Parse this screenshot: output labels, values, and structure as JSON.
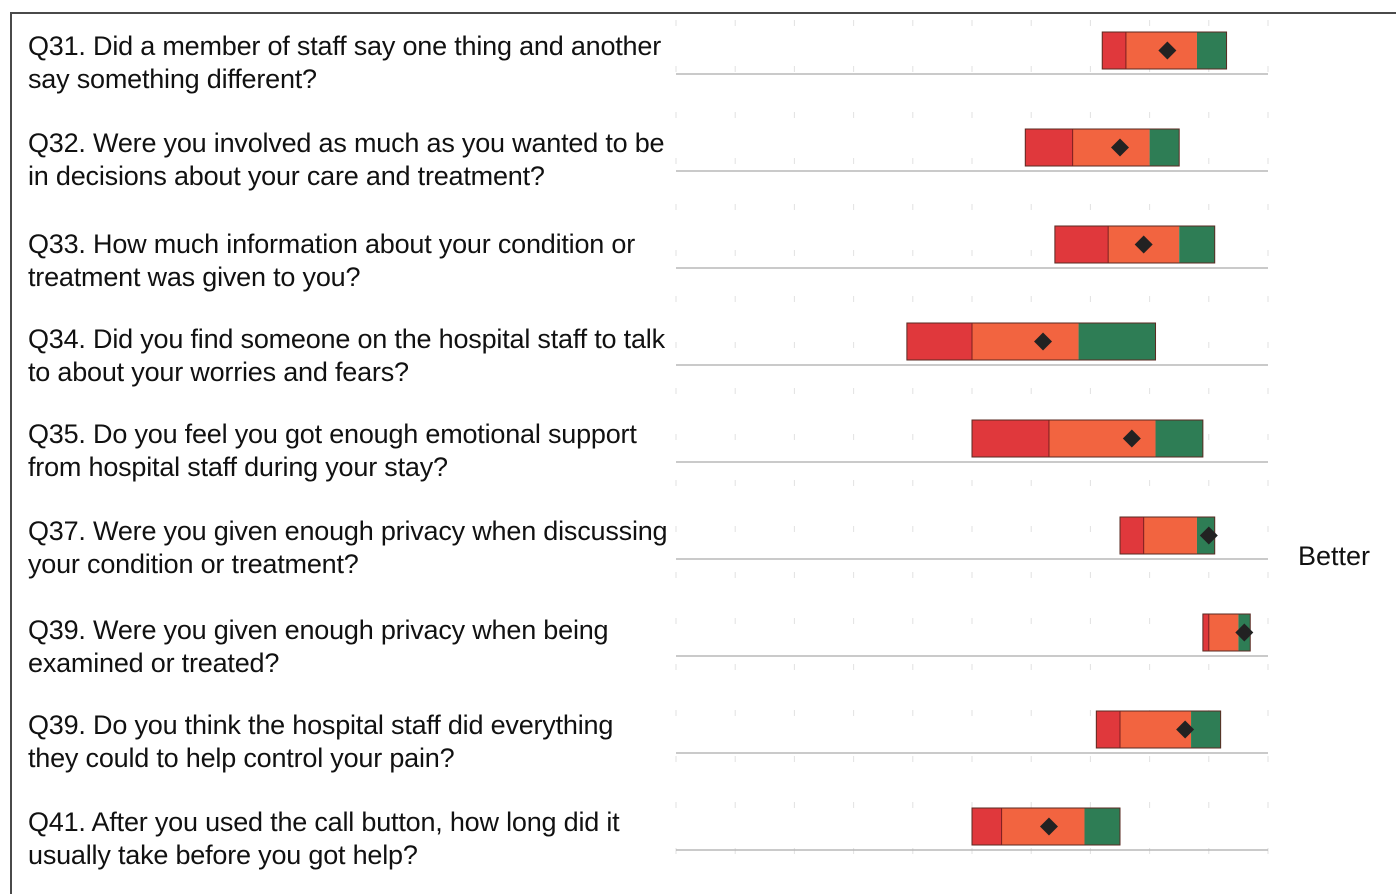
{
  "chart_data": {
    "type": "range-bar",
    "annotation": "Better",
    "colors": {
      "worse": "#e0383c",
      "middle": "#f26440",
      "better": "#2e7d55",
      "marker": "#222222",
      "grid": "#d6d6d6",
      "baseline": "#b8b8b8"
    },
    "xlim": [
      0,
      10
    ],
    "questions": [
      {
        "label": "Q31. Did a member of staff say one thing and another say something different?",
        "low": 7.2,
        "lower_mid": 7.6,
        "upper_mid": 8.8,
        "high": 9.3,
        "score": 8.3
      },
      {
        "label": "Q32. Were you involved as much as you wanted to be in decisions about your care and treatment?",
        "low": 5.9,
        "lower_mid": 6.7,
        "upper_mid": 8.0,
        "high": 8.5,
        "score": 7.5
      },
      {
        "label": "Q33. How much information about your condition or treatment was given to you?",
        "low": 6.4,
        "lower_mid": 7.3,
        "upper_mid": 8.5,
        "high": 9.1,
        "score": 7.9
      },
      {
        "label": "Q34. Did you find someone on the hospital staff to talk to about your worries and fears?",
        "low": 3.9,
        "lower_mid": 5.0,
        "upper_mid": 6.8,
        "high": 8.1,
        "score": 6.2
      },
      {
        "label": "Q35. Do you feel you got enough emotional support from hospital staff during your stay?",
        "low": 5.0,
        "lower_mid": 6.3,
        "upper_mid": 8.1,
        "high": 8.9,
        "score": 7.7
      },
      {
        "label": "Q37. Were you given enough privacy when discussing your condition or treatment?",
        "low": 7.5,
        "lower_mid": 7.9,
        "upper_mid": 8.8,
        "high": 9.1,
        "score": 9.0
      },
      {
        "label": "Q39. Were you given enough privacy when being examined or treated?",
        "low": 8.9,
        "lower_mid": 9.0,
        "upper_mid": 9.5,
        "high": 9.7,
        "score": 9.6
      },
      {
        "label": "Q39. Do you think the hospital staff did everything they could to help control your pain?",
        "low": 7.1,
        "lower_mid": 7.5,
        "upper_mid": 8.7,
        "high": 9.2,
        "score": 8.6
      },
      {
        "label": "Q41. After you used the call button, how long did it usually take before you got help?",
        "low": 5.0,
        "lower_mid": 5.5,
        "upper_mid": 6.9,
        "high": 7.5,
        "score": 6.3
      }
    ]
  }
}
